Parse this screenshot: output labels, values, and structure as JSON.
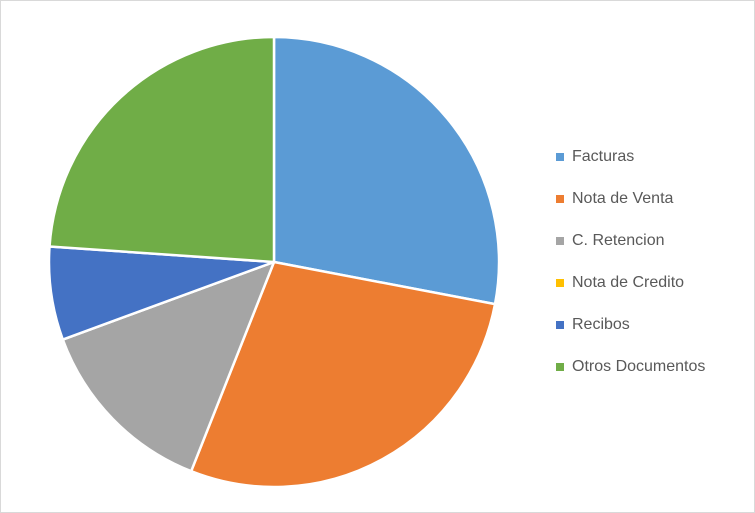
{
  "chart_data": {
    "type": "pie",
    "categories": [
      "Facturas",
      "Nota de Venta",
      "C. Retencion",
      "Nota de Credito",
      "Recibos",
      "Otros Documentos"
    ],
    "values": [
      28,
      28,
      13.4,
      0,
      6.7,
      23.9
    ],
    "colors": [
      "#5b9bd5",
      "#ed7d31",
      "#a5a5a5",
      "#ffc000",
      "#4472c4",
      "#70ad47"
    ],
    "legend": "right"
  }
}
